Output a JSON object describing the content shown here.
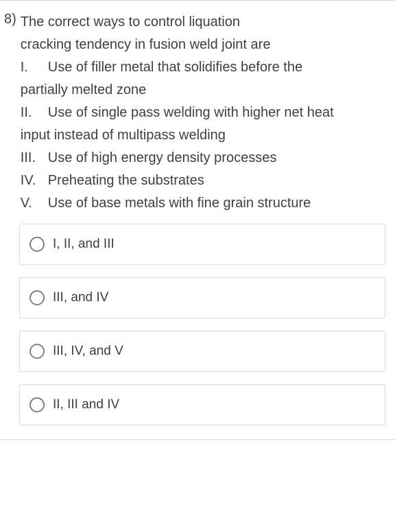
{
  "question": {
    "number": "8)",
    "stem_line1": "The correct ways to control liquation",
    "stem_line2": "cracking tendency in fusion weld joint are",
    "statements": [
      {
        "roman": "I.",
        "text": "Use of filler metal that solidifies before the",
        "cont": "partially melted zone"
      },
      {
        "roman": "II.",
        "text": "Use of single pass welding with higher net heat",
        "cont": "input instead of multipass welding"
      },
      {
        "roman": "III.",
        "text": "Use of high energy density processes"
      },
      {
        "roman": "IV.",
        "text": "Preheating the substrates"
      },
      {
        "roman": "V.",
        "text": "Use of base metals with fine grain structure"
      }
    ],
    "options": [
      {
        "label": "I, II, and III"
      },
      {
        "label": "III, and IV"
      },
      {
        "label": "III, IV, and V"
      },
      {
        "label": "II, III and IV"
      }
    ]
  },
  "style": {
    "font_family": "Arial",
    "text_color": "#3f3f3f",
    "border_color": "#dcdcdc",
    "radio_border_color": "#808080",
    "background_color": "#ffffff",
    "question_fontsize": 20,
    "option_fontsize": 19
  }
}
